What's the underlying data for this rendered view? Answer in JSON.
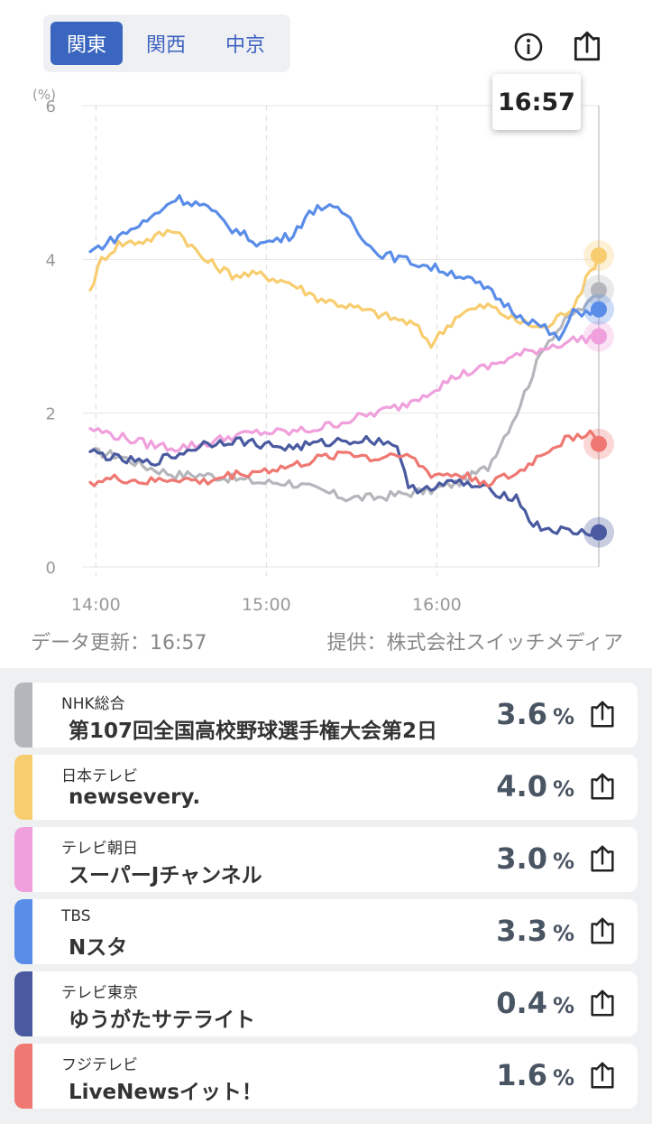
{
  "region_tabs": [
    {
      "label": "関東",
      "active": true
    },
    {
      "label": "関西",
      "active": false
    },
    {
      "label": "中京",
      "active": false
    }
  ],
  "header": {
    "info_icon": "info-circle-icon",
    "share_icon": "share-icon",
    "tooltip_time": "16:57"
  },
  "chart_data": {
    "type": "line",
    "ylabel": "(%)",
    "ylim": [
      0,
      6
    ],
    "yticks": [
      "0",
      "2",
      "4",
      "6"
    ],
    "xlim": [
      "13:58",
      "16:57"
    ],
    "xticks": [
      "14:00",
      "15:00",
      "16:00"
    ],
    "grid": true,
    "series": [
      {
        "name": "NHK総合",
        "color": "#b4b6bb",
        "x": [
          0,
          10,
          20,
          30,
          40,
          50,
          60,
          70,
          80,
          90,
          100,
          110,
          120,
          130,
          140,
          150,
          160,
          170,
          175,
          179
        ],
        "values": [
          1.5,
          1.45,
          1.3,
          1.2,
          1.2,
          1.15,
          1.1,
          1.1,
          1.0,
          0.9,
          0.9,
          0.95,
          1.0,
          1.1,
          1.3,
          2.0,
          2.9,
          3.3,
          3.4,
          3.6
        ]
      },
      {
        "name": "日本テレビ",
        "color": "#f8cd6f",
        "x": [
          0,
          4,
          10,
          20,
          30,
          40,
          50,
          60,
          70,
          80,
          90,
          100,
          110,
          114,
          120,
          130,
          140,
          150,
          160,
          170,
          179
        ],
        "values": [
          3.6,
          4.0,
          4.2,
          4.25,
          4.4,
          4.0,
          3.8,
          3.8,
          3.7,
          3.5,
          3.4,
          3.3,
          3.2,
          3.15,
          2.9,
          3.3,
          3.4,
          3.2,
          3.1,
          3.4,
          4.05
        ]
      },
      {
        "name": "テレビ朝日",
        "color": "#f0a0dc",
        "x": [
          0,
          10,
          20,
          30,
          40,
          50,
          60,
          70,
          80,
          90,
          100,
          110,
          120,
          130,
          140,
          150,
          160,
          170,
          179
        ],
        "values": [
          1.8,
          1.7,
          1.6,
          1.55,
          1.6,
          1.7,
          1.75,
          1.75,
          1.8,
          1.9,
          2.0,
          2.1,
          2.3,
          2.5,
          2.6,
          2.75,
          2.85,
          2.95,
          3.0
        ]
      },
      {
        "name": "TBS",
        "color": "#5a8de8",
        "x": [
          0,
          10,
          20,
          30,
          40,
          50,
          60,
          70,
          80,
          90,
          100,
          110,
          120,
          130,
          140,
          150,
          160,
          165,
          170,
          179
        ],
        "values": [
          4.1,
          4.3,
          4.5,
          4.8,
          4.7,
          4.4,
          4.2,
          4.3,
          4.7,
          4.6,
          4.1,
          4.0,
          3.9,
          3.8,
          3.6,
          3.3,
          3.1,
          2.95,
          3.3,
          3.35
        ]
      },
      {
        "name": "テレビ東京",
        "color": "#4a5aa0",
        "x": [
          0,
          10,
          20,
          30,
          40,
          50,
          60,
          70,
          80,
          90,
          100,
          108,
          112,
          120,
          130,
          140,
          150,
          156,
          160,
          170,
          179
        ],
        "values": [
          1.5,
          1.4,
          1.35,
          1.45,
          1.6,
          1.65,
          1.6,
          1.55,
          1.6,
          1.65,
          1.65,
          1.6,
          1.0,
          1.05,
          1.1,
          1.0,
          0.9,
          0.55,
          0.5,
          0.45,
          0.45
        ]
      },
      {
        "name": "フジテレビ",
        "color": "#ef7872",
        "x": [
          0,
          10,
          20,
          30,
          40,
          50,
          60,
          70,
          80,
          90,
          100,
          110,
          120,
          130,
          140,
          150,
          160,
          170,
          176,
          179
        ],
        "values": [
          1.1,
          1.15,
          1.1,
          1.15,
          1.1,
          1.2,
          1.25,
          1.3,
          1.4,
          1.5,
          1.4,
          1.5,
          1.2,
          1.2,
          1.1,
          1.2,
          1.5,
          1.7,
          1.75,
          1.6
        ]
      }
    ]
  },
  "footer": {
    "updated": "データ更新：16:57",
    "source": "提供：株式会社スイッチメディア"
  },
  "programs": [
    {
      "channel": "NHK総合",
      "title": "第107回全国高校野球選手権大会第2日",
      "value": "3.6",
      "unit": "%",
      "color": "#b4b6bb"
    },
    {
      "channel": "日本テレビ",
      "title": "newsevery.",
      "value": "4.0",
      "unit": "%",
      "color": "#f8cd6f"
    },
    {
      "channel": "テレビ朝日",
      "title": "スーパーJチャンネル",
      "value": "3.0",
      "unit": "%",
      "color": "#f0a0dc"
    },
    {
      "channel": "TBS",
      "title": "Nスタ",
      "value": "3.3",
      "unit": "%",
      "color": "#5a8de8"
    },
    {
      "channel": "テレビ東京",
      "title": "ゆうがたサテライト",
      "value": "0.4",
      "unit": "%",
      "color": "#4a5aa0"
    },
    {
      "channel": "フジテレビ",
      "title": "LiveNewsイット！",
      "value": "1.6",
      "unit": "%",
      "color": "#ef7872"
    }
  ]
}
